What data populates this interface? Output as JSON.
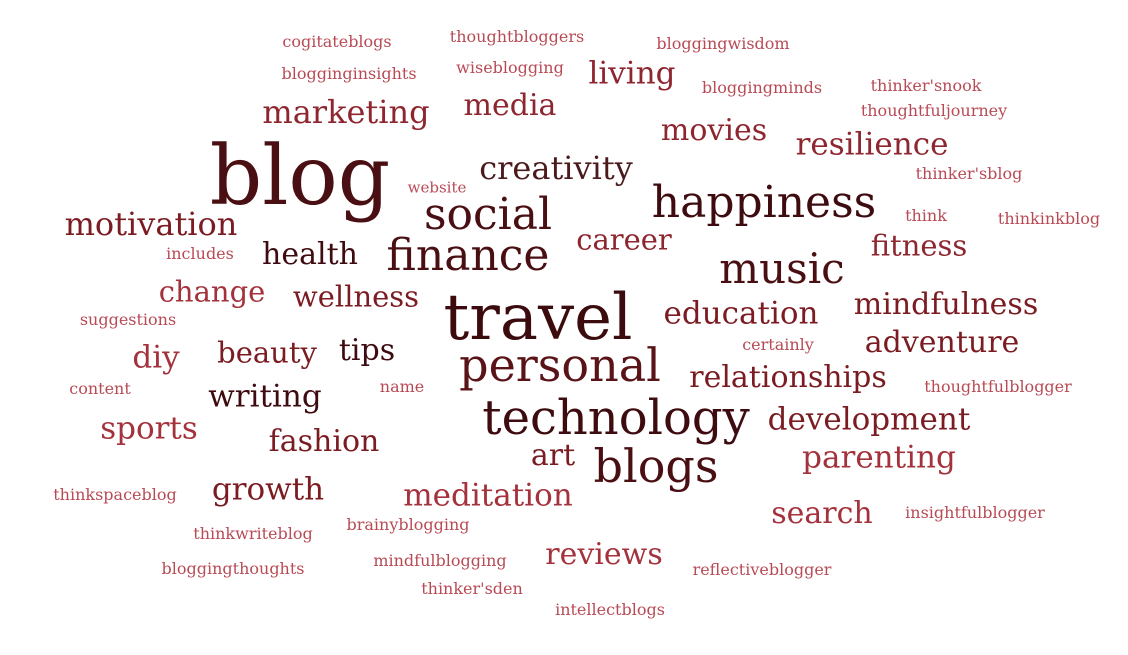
{
  "words": [
    {
      "text": "blog",
      "color": "#4a0f12"
    },
    {
      "text": "travel",
      "color": "#3b0b0e"
    },
    {
      "text": "technology",
      "color": "#3e0c10"
    },
    {
      "text": "personal",
      "color": "#5a1418"
    },
    {
      "text": "blogs",
      "color": "#4a0f12"
    },
    {
      "text": "happiness",
      "color": "#3e0c10"
    },
    {
      "text": "social",
      "color": "#4a0f12"
    },
    {
      "text": "finance",
      "color": "#4a0f12"
    },
    {
      "text": "music",
      "color": "#4a0f12"
    },
    {
      "text": "motivation",
      "color": "#7a1c22"
    },
    {
      "text": "creativity",
      "color": "#4a1a1c"
    },
    {
      "text": "marketing",
      "color": "#8e2630"
    },
    {
      "text": "media",
      "color": "#8e2630"
    },
    {
      "text": "living",
      "color": "#8e2630"
    },
    {
      "text": "movies",
      "color": "#8e2630"
    },
    {
      "text": "resilience",
      "color": "#8e2630"
    },
    {
      "text": "health",
      "color": "#3e0c10"
    },
    {
      "text": "career",
      "color": "#8e2630"
    },
    {
      "text": "fitness",
      "color": "#8e2630"
    },
    {
      "text": "change",
      "color": "#a4323c"
    },
    {
      "text": "wellness",
      "color": "#7a1c22"
    },
    {
      "text": "mindfulness",
      "color": "#7a1c22"
    },
    {
      "text": "education",
      "color": "#7a1c22"
    },
    {
      "text": "adventure",
      "color": "#7a1c22"
    },
    {
      "text": "beauty",
      "color": "#7a1c22"
    },
    {
      "text": "tips",
      "color": "#3e0c10"
    },
    {
      "text": "diy",
      "color": "#a4323c"
    },
    {
      "text": "relationships",
      "color": "#7a1c22"
    },
    {
      "text": "writing",
      "color": "#3e0c10"
    },
    {
      "text": "development",
      "color": "#7a1c22"
    },
    {
      "text": "sports",
      "color": "#a4323c"
    },
    {
      "text": "fashion",
      "color": "#7a1c22"
    },
    {
      "text": "art",
      "color": "#7a1c22"
    },
    {
      "text": "parenting",
      "color": "#a4323c"
    },
    {
      "text": "growth",
      "color": "#7a1c22"
    },
    {
      "text": "meditation",
      "color": "#a4323c"
    },
    {
      "text": "search",
      "color": "#a4323c"
    },
    {
      "text": "reviews",
      "color": "#a4323c"
    },
    {
      "text": "cogitateblogs",
      "color": "#b84a55"
    },
    {
      "text": "thoughtbloggers",
      "color": "#b84a55"
    },
    {
      "text": "bloggingwisdom",
      "color": "#b84a55"
    },
    {
      "text": "blogginginsights",
      "color": "#b84a55"
    },
    {
      "text": "wiseblogging",
      "color": "#b84a55"
    },
    {
      "text": "bloggingminds",
      "color": "#b84a55"
    },
    {
      "text": "thinker'snook",
      "color": "#b84a55"
    },
    {
      "text": "thoughtfuljourney",
      "color": "#b84a55"
    },
    {
      "text": "thinker'sblog",
      "color": "#b84a55"
    },
    {
      "text": "website",
      "color": "#b84a55"
    },
    {
      "text": "think",
      "color": "#b84a55"
    },
    {
      "text": "thinkinkblog",
      "color": "#b84a55"
    },
    {
      "text": "includes",
      "color": "#b84a55"
    },
    {
      "text": "suggestions",
      "color": "#b84a55"
    },
    {
      "text": "certainly",
      "color": "#b84a55"
    },
    {
      "text": "content",
      "color": "#b84a55"
    },
    {
      "text": "name",
      "color": "#b84a55"
    },
    {
      "text": "thoughtfulblogger",
      "color": "#b84a55"
    },
    {
      "text": "thinkspaceblog",
      "color": "#b84a55"
    },
    {
      "text": "thinkwriteblog",
      "color": "#b84a55"
    },
    {
      "text": "brainyblogging",
      "color": "#b84a55"
    },
    {
      "text": "insightfulblogger",
      "color": "#b84a55"
    },
    {
      "text": "mindfulblogging",
      "color": "#b84a55"
    },
    {
      "text": "bloggingthoughts",
      "color": "#b84a55"
    },
    {
      "text": "reflectiveblogger",
      "color": "#b84a55"
    },
    {
      "text": "thinker'sden",
      "color": "#b84a55"
    },
    {
      "text": "intellectblogs",
      "color": "#b84a55"
    }
  ]
}
